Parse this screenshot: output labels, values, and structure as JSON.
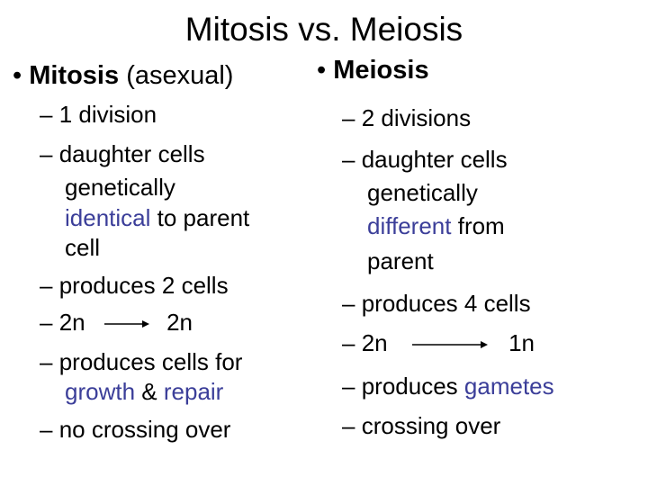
{
  "title": "Mitosis vs. Meiosis",
  "colors": {
    "highlight": "#3b3e99",
    "text": "#000000",
    "background": "#ffffff"
  },
  "left": {
    "bullet": "•",
    "heading": "Mitosis",
    "heading_note": "(asexual)",
    "dash": "–",
    "items": {
      "i1": "1 division",
      "i2_l1": "daughter cells",
      "i2_l2": "genetically",
      "i2_l3_hl": "identical",
      "i2_l3_rest": "to parent",
      "i2_l4": "cell",
      "i3": "produces 2 cells",
      "i4_from": "2n",
      "i4_to": "2n",
      "i5_l1": "produces cells for",
      "i5_hl1": "growth",
      "i5_amp": "&",
      "i5_hl2": "repair",
      "i6": "no crossing over"
    }
  },
  "right": {
    "bullet": "•",
    "heading": "Meiosis",
    "dash": "–",
    "items": {
      "i1": "2 divisions",
      "i2_l1": "daughter cells",
      "i2_l2": "genetically",
      "i2_l3_hl": "different",
      "i2_l3_rest": "from",
      "i2_l4": "parent",
      "i3": "produces 4 cells",
      "i4_from": "2n",
      "i4_to": "1n",
      "i5_l1": "produces",
      "i5_hl": "gametes",
      "i6": "crossing over"
    }
  }
}
